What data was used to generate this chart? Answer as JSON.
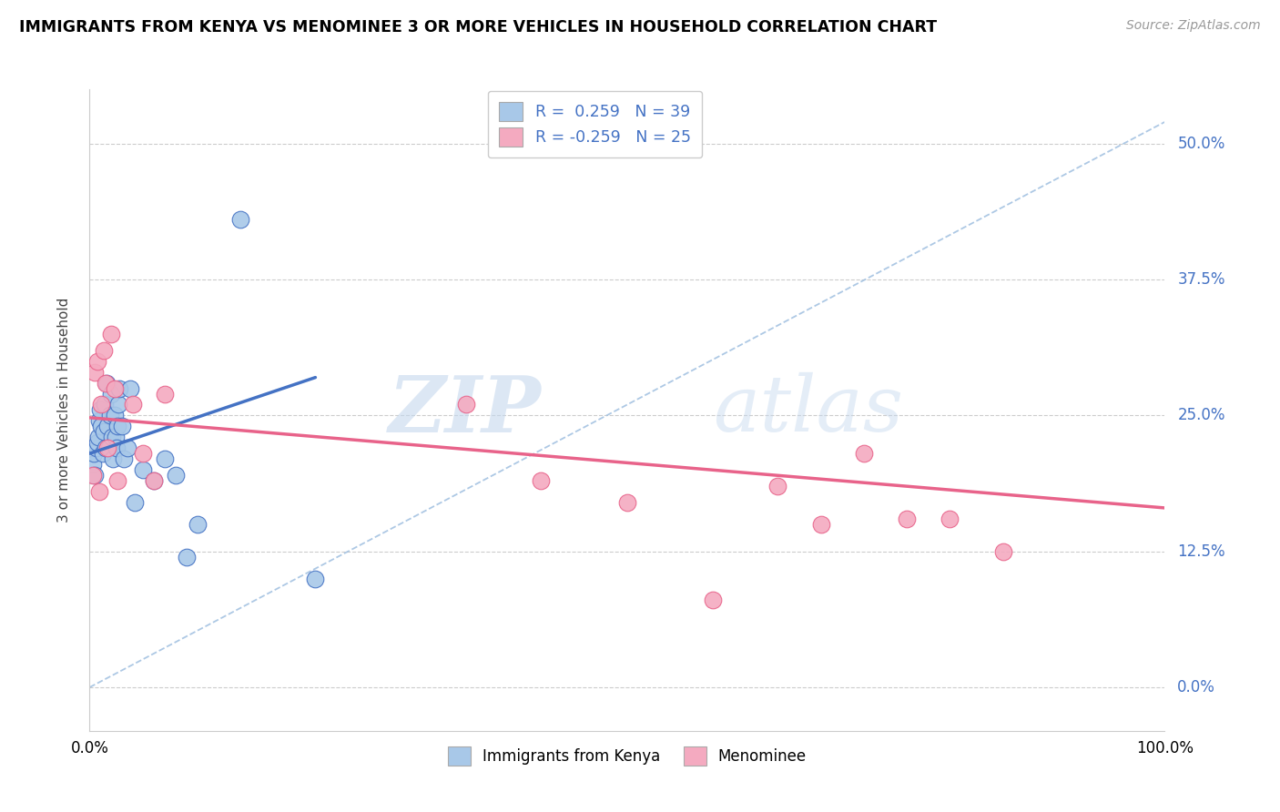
{
  "title": "IMMIGRANTS FROM KENYA VS MENOMINEE 3 OR MORE VEHICLES IN HOUSEHOLD CORRELATION CHART",
  "source": "Source: ZipAtlas.com",
  "ylabel": "3 or more Vehicles in Household",
  "xlim": [
    0.0,
    1.0
  ],
  "ylim": [
    -0.04,
    0.55
  ],
  "yticks": [
    0.0,
    0.125,
    0.25,
    0.375,
    0.5
  ],
  "ytick_labels": [
    "0.0%",
    "12.5%",
    "25.0%",
    "37.5%",
    "50.0%"
  ],
  "color_blue": "#a8c8e8",
  "color_pink": "#f4aac0",
  "line_blue": "#4472c4",
  "line_pink": "#e8638a",
  "line_dash": "#9fbfe0",
  "watermark_zip": "ZIP",
  "watermark_atlas": "atlas",
  "r1": " 0.259",
  "n1": "39",
  "r2": "-0.259",
  "n2": "25",
  "blue_points_x": [
    0.003,
    0.004,
    0.005,
    0.006,
    0.007,
    0.008,
    0.009,
    0.01,
    0.011,
    0.012,
    0.013,
    0.014,
    0.015,
    0.016,
    0.017,
    0.018,
    0.019,
    0.02,
    0.021,
    0.022,
    0.023,
    0.024,
    0.025,
    0.026,
    0.027,
    0.028,
    0.03,
    0.032,
    0.035,
    0.038,
    0.042,
    0.05,
    0.06,
    0.07,
    0.08,
    0.09,
    0.1,
    0.14,
    0.21
  ],
  "blue_points_y": [
    0.205,
    0.215,
    0.195,
    0.22,
    0.225,
    0.23,
    0.245,
    0.255,
    0.24,
    0.215,
    0.235,
    0.26,
    0.22,
    0.28,
    0.24,
    0.22,
    0.25,
    0.27,
    0.23,
    0.21,
    0.25,
    0.23,
    0.22,
    0.24,
    0.26,
    0.275,
    0.24,
    0.21,
    0.22,
    0.275,
    0.17,
    0.2,
    0.19,
    0.21,
    0.195,
    0.12,
    0.15,
    0.43,
    0.1
  ],
  "pink_points_x": [
    0.003,
    0.005,
    0.007,
    0.009,
    0.011,
    0.013,
    0.015,
    0.017,
    0.02,
    0.023,
    0.026,
    0.04,
    0.05,
    0.06,
    0.07,
    0.35,
    0.42,
    0.5,
    0.58,
    0.64,
    0.68,
    0.72,
    0.76,
    0.8,
    0.85
  ],
  "pink_points_y": [
    0.195,
    0.29,
    0.3,
    0.18,
    0.26,
    0.31,
    0.28,
    0.22,
    0.325,
    0.275,
    0.19,
    0.26,
    0.215,
    0.19,
    0.27,
    0.26,
    0.19,
    0.17,
    0.08,
    0.185,
    0.15,
    0.215,
    0.155,
    0.155,
    0.125
  ],
  "blue_trend_x": [
    0.0,
    0.21
  ],
  "blue_trend_y": [
    0.215,
    0.285
  ],
  "pink_trend_x": [
    0.0,
    1.0
  ],
  "pink_trend_y": [
    0.248,
    0.165
  ],
  "dash_line_x": [
    0.0,
    1.0
  ],
  "dash_line_y": [
    0.0,
    0.52
  ]
}
